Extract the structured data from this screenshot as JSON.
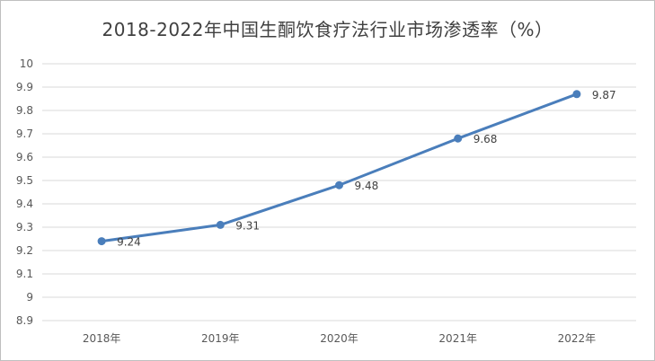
{
  "chart_data": {
    "type": "line",
    "title": "2018-2022年中国生酮饮食疗法行业市场渗透率（%）",
    "categories": [
      "2018年",
      "2019年",
      "2020年",
      "2021年",
      "2022年"
    ],
    "series": [
      {
        "values": [
          9.24,
          9.31,
          9.48,
          9.68,
          9.87
        ]
      }
    ],
    "data_labels": [
      "9.24",
      "9.31",
      "9.48",
      "9.68",
      "9.87"
    ],
    "ylim": [
      8.9,
      10
    ],
    "yticks": [
      "10",
      "9.9",
      "9.8",
      "9.7",
      "9.6",
      "9.5",
      "9.4",
      "9.3",
      "9.2",
      "9.1",
      "9",
      "8.9"
    ],
    "grid": true,
    "legend": "none",
    "colors": {
      "line": "#4a7ebb",
      "grid": "#d9d9d9",
      "text": "#595959"
    }
  }
}
